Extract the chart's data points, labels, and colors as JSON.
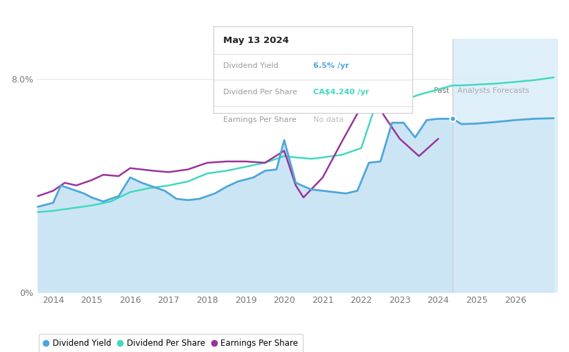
{
  "tooltip_date": "May 13 2024",
  "tooltip_yield": "6.5%",
  "tooltip_dps": "CA$4.240",
  "tooltip_eps": "No data",
  "past_label": "Past",
  "forecast_label": "Analysts Forecasts",
  "forecast_start_x": 2024.38,
  "bg_color": "#ffffff",
  "fill_color_past": "#cce5f5",
  "fill_color_forecast": "#daedf8",
  "grid_color": "#e8e8e8",
  "div_yield_color": "#4da6d9",
  "dps_color": "#40d9c0",
  "eps_color": "#993399",
  "legend_items": [
    "Dividend Yield",
    "Dividend Per Share",
    "Earnings Per Share"
  ],
  "xlim": [
    2013.58,
    2027.1
  ],
  "ylim": [
    0.0,
    9.5
  ],
  "ytick_pos": [
    0.0,
    8.0
  ],
  "ytick_labels": [
    "0%",
    "8.0%"
  ],
  "xticks": [
    2014,
    2015,
    2016,
    2017,
    2018,
    2019,
    2020,
    2021,
    2022,
    2023,
    2024,
    2025,
    2026
  ],
  "div_yield_x": [
    2013.6,
    2014.0,
    2014.2,
    2014.5,
    2014.8,
    2015.0,
    2015.3,
    2015.7,
    2016.0,
    2016.3,
    2016.6,
    2016.9,
    2017.2,
    2017.5,
    2017.8,
    2018.2,
    2018.5,
    2018.8,
    2019.2,
    2019.5,
    2019.8,
    2020.0,
    2020.3,
    2020.7,
    2021.0,
    2021.3,
    2021.6,
    2021.9,
    2022.2,
    2022.5,
    2022.8,
    2023.1,
    2023.4,
    2023.7,
    2024.0,
    2024.38
  ],
  "div_yield_y": [
    3.2,
    3.35,
    4.0,
    3.85,
    3.7,
    3.55,
    3.4,
    3.6,
    4.3,
    4.1,
    3.95,
    3.8,
    3.5,
    3.45,
    3.5,
    3.7,
    3.95,
    4.15,
    4.3,
    4.55,
    4.6,
    5.7,
    4.1,
    3.85,
    3.8,
    3.75,
    3.7,
    3.8,
    4.85,
    4.9,
    6.35,
    6.35,
    5.8,
    6.45,
    6.5,
    6.5
  ],
  "div_yield_fut_x": [
    2024.38,
    2024.6,
    2025.0,
    2025.5,
    2026.0,
    2026.5,
    2027.0
  ],
  "div_yield_fut_y": [
    6.5,
    6.3,
    6.32,
    6.38,
    6.45,
    6.5,
    6.52
  ],
  "dps_x": [
    2013.6,
    2014.0,
    2014.5,
    2015.0,
    2015.5,
    2016.0,
    2016.5,
    2017.0,
    2017.5,
    2018.0,
    2018.5,
    2019.0,
    2019.5,
    2020.0,
    2020.3,
    2020.7,
    2021.0,
    2021.5,
    2022.0,
    2022.3,
    2022.6,
    2023.0,
    2023.5,
    2024.0,
    2024.38,
    2024.6,
    2025.0,
    2025.5,
    2026.0,
    2026.5,
    2027.0
  ],
  "dps_y": [
    3.0,
    3.05,
    3.15,
    3.25,
    3.4,
    3.75,
    3.9,
    4.0,
    4.15,
    4.45,
    4.55,
    4.7,
    4.85,
    5.1,
    5.05,
    5.0,
    5.05,
    5.15,
    5.4,
    6.7,
    7.1,
    7.15,
    7.4,
    7.6,
    7.75,
    7.75,
    7.78,
    7.82,
    7.88,
    7.95,
    8.05
  ],
  "eps_x": [
    2013.6,
    2014.0,
    2014.3,
    2014.6,
    2015.0,
    2015.3,
    2015.7,
    2016.0,
    2016.3,
    2016.6,
    2017.0,
    2017.5,
    2018.0,
    2018.5,
    2019.0,
    2019.5,
    2020.0,
    2020.3,
    2020.5,
    2021.0,
    2021.5,
    2022.0,
    2022.3,
    2022.6,
    2023.0,
    2023.5,
    2024.0
  ],
  "eps_y": [
    3.6,
    3.8,
    4.1,
    4.0,
    4.2,
    4.4,
    4.35,
    4.65,
    4.6,
    4.55,
    4.5,
    4.6,
    4.85,
    4.9,
    4.9,
    4.85,
    5.3,
    4.0,
    3.55,
    4.3,
    5.65,
    6.95,
    7.35,
    6.6,
    5.75,
    5.1,
    5.75
  ],
  "point_x": 2024.38,
  "point_y": 6.5
}
